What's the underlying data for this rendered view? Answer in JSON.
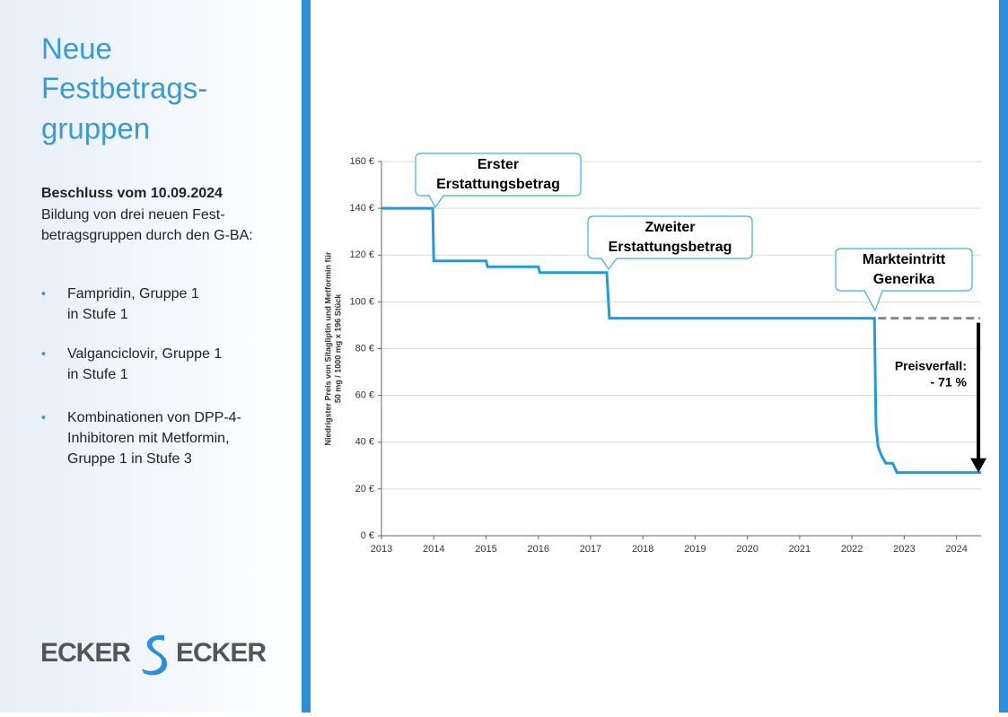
{
  "sidebar": {
    "title": [
      "Neue",
      "Festbetrags-",
      "gruppen"
    ],
    "heading": "Beschluss vom 10.09.2024",
    "text": [
      "Bildung von drei neuen Fest-",
      "betragsgruppen durch den G-BA:"
    ],
    "bullets": [
      [
        "Fampridin, Gruppe 1",
        "in Stufe 1"
      ],
      [
        "Valganciclovir, Gruppe 1",
        "in Stufe 1"
      ],
      [
        "Kombinationen von DPP-4-",
        "Inhibitoren mit Metformin,",
        "Gruppe 1 in Stufe 3"
      ]
    ],
    "logo": [
      "ECKER",
      "ECKER"
    ]
  },
  "chart_data": {
    "type": "line",
    "y_label": [
      "Niedrigster Preis von Sitagliptin und Metformin für",
      "50 mg / 1000 mg x 196 Stück"
    ],
    "x": [
      2013,
      2013.98,
      2014.0,
      2015.0,
      2015.03,
      2016.0,
      2016.03,
      2017.31,
      2017.36,
      2022.43,
      2022.46,
      2022.5,
      2022.57,
      2022.65,
      2022.78,
      2022.86,
      2024.47
    ],
    "values": [
      140,
      140,
      117.5,
      117.5,
      115,
      115,
      112.5,
      112.5,
      93,
      93,
      47,
      38,
      34,
      31,
      31,
      27,
      27
    ],
    "color": "#1f9be0",
    "xlim": [
      2013,
      2024.47
    ],
    "xticks": [
      2013,
      2014,
      2015,
      2016,
      2017,
      2018,
      2019,
      2020,
      2021,
      2022,
      2023,
      2024
    ],
    "ylim": [
      0,
      160
    ],
    "yticks": [
      {
        "value": 0,
        "label": "0 €"
      },
      {
        "value": 20,
        "label": "20 €"
      },
      {
        "value": 40,
        "label": "40 €"
      },
      {
        "value": 60,
        "label": "60 €"
      },
      {
        "value": 80,
        "label": "80 €"
      },
      {
        "value": 100,
        "label": "100 €"
      },
      {
        "value": 120,
        "label": "120 €"
      },
      {
        "value": 140,
        "label": "140 €"
      },
      {
        "value": 160,
        "label": "160 €"
      }
    ],
    "grid": true,
    "reference_line": {
      "y": 93,
      "x": [
        2022.5,
        2024.45
      ],
      "color": "#888888"
    },
    "arrow": {
      "x": 2024.42,
      "y": [
        93,
        27
      ],
      "color": "#000000"
    },
    "annotations": [
      {
        "lines": [
          "Erster",
          "Erstattungsbetrag"
        ]
      },
      {
        "lines": [
          "Zweiter",
          "Erstattungsbetrag"
        ]
      },
      {
        "lines": [
          "Markteintritt",
          "Generika"
        ]
      },
      {
        "lines": [
          "Preisverfall:",
          "- 71 %"
        ]
      }
    ]
  }
}
